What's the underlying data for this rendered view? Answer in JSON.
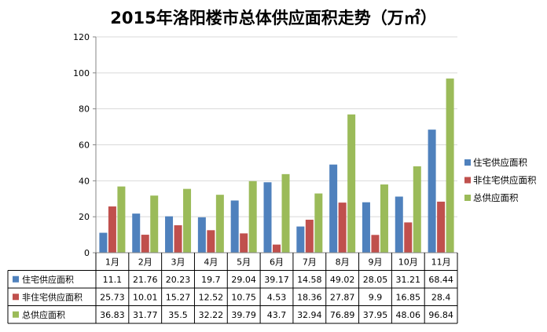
{
  "chart_data": {
    "type": "bar",
    "title": "2015年洛阳楼市总体供应面积走势（万㎡）",
    "categories": [
      "1月",
      "2月",
      "3月",
      "4月",
      "5月",
      "6月",
      "7月",
      "8月",
      "9月",
      "10月",
      "11月"
    ],
    "ylim": [
      0,
      120
    ],
    "yticks": [
      0,
      20,
      40,
      60,
      80,
      100,
      120
    ],
    "grid": true,
    "legend_position": "right",
    "series": [
      {
        "name": "住宅供应面积",
        "color": "#4f81bd",
        "values": [
          11.1,
          21.76,
          20.23,
          19.7,
          29.04,
          39.17,
          14.58,
          49.02,
          28.05,
          31.21,
          68.44
        ],
        "labels": [
          "11.1",
          "21.76",
          "20.23",
          "19.7",
          "29.04",
          "39.17",
          "14.58",
          "49.02",
          "28.05",
          "31.21",
          "68.44"
        ]
      },
      {
        "name": "非住宅供应面积",
        "color": "#c0504d",
        "values": [
          25.73,
          10.01,
          15.27,
          12.52,
          10.75,
          4.53,
          18.36,
          27.87,
          9.9,
          16.85,
          28.4
        ],
        "labels": [
          "25.73",
          "10.01",
          "15.27",
          "12.52",
          "10.75",
          "4.53",
          "18.36",
          "27.87",
          "9.9",
          "16.85",
          "28.4"
        ]
      },
      {
        "name": "总供应面积",
        "color": "#9bbb59",
        "values": [
          36.83,
          31.77,
          35.5,
          32.22,
          39.79,
          43.7,
          32.94,
          76.89,
          37.95,
          48.06,
          96.84
        ],
        "labels": [
          "36.83",
          "31.77",
          "35.5",
          "32.22",
          "39.79",
          "43.7",
          "32.94",
          "76.89",
          "37.95",
          "48.06",
          "96.84"
        ]
      }
    ]
  }
}
